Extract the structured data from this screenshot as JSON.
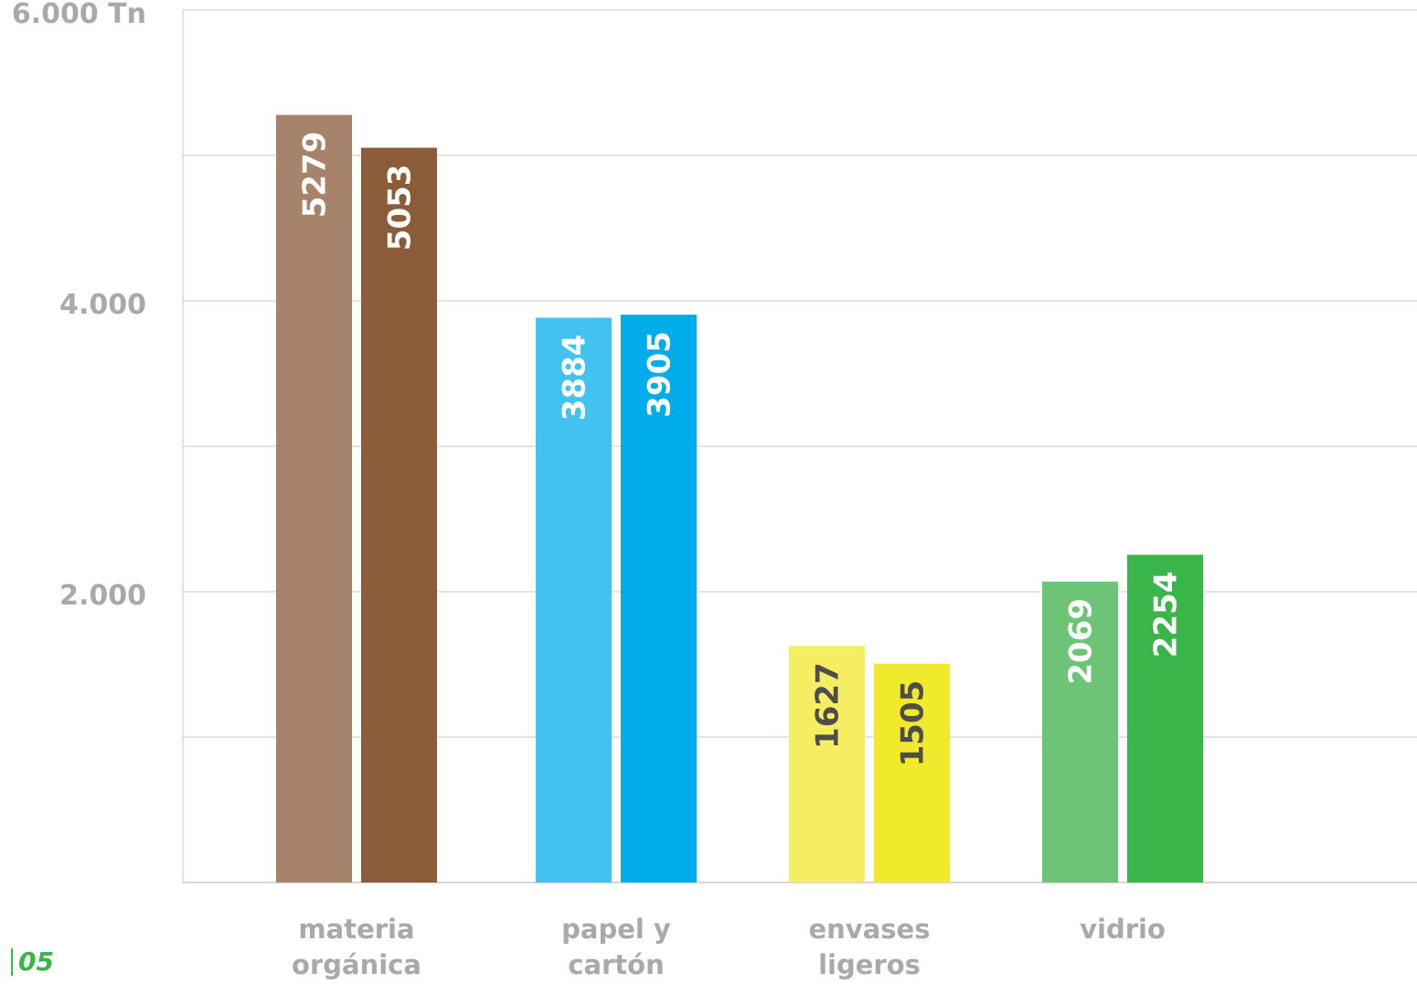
{
  "chart_data": {
    "type": "bar",
    "categories": [
      [
        "materia",
        "orgánica"
      ],
      [
        "papel y",
        "cartón"
      ],
      [
        "envases",
        "ligeros"
      ],
      [
        "vidrio"
      ]
    ],
    "values": [
      [
        5279,
        5053
      ],
      [
        3884,
        3905
      ],
      [
        1627,
        1505
      ],
      [
        2069,
        2254
      ]
    ],
    "bar_colors": [
      [
        "#a6836a",
        "#8a5c3a"
      ],
      [
        "#41c2f0",
        "#00adea"
      ],
      [
        "#f5ee63",
        "#f1e92c"
      ],
      [
        "#6dc476",
        "#3ab54a"
      ]
    ],
    "label_colors": [
      [
        "#ffffff",
        "#ffffff"
      ],
      [
        "#ffffff",
        "#ffffff"
      ],
      [
        "#4d4d4d",
        "#4d4d4d"
      ],
      [
        "#ffffff",
        "#ffffff"
      ]
    ],
    "ylim": [
      0,
      6000
    ],
    "yticks": [
      {
        "value": 2000,
        "label": "2.000"
      },
      {
        "value": 4000,
        "label": "4.000"
      },
      {
        "value": 6000,
        "label": "6.000 Tn"
      }
    ],
    "gridlines": [
      1000,
      2000,
      3000,
      4000,
      5000,
      6000
    ],
    "grid": true
  },
  "page_number": "05"
}
